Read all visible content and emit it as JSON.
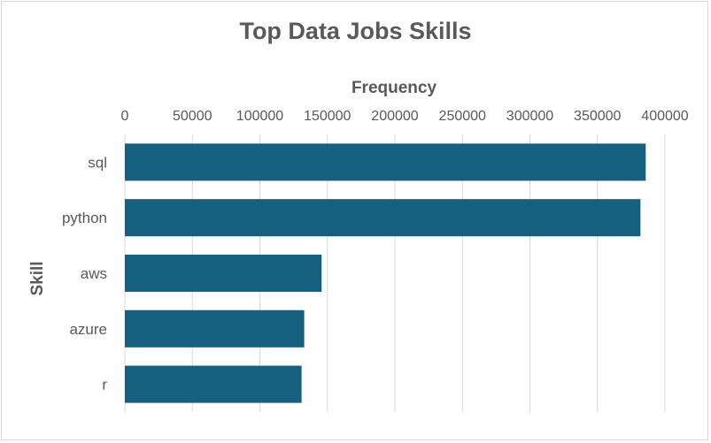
{
  "chart_data": {
    "type": "bar",
    "orientation": "horizontal",
    "title": "Top Data Jobs Skills",
    "xlabel": "Frequency",
    "ylabel": "Skill",
    "categories": [
      "sql",
      "python",
      "aws",
      "azure",
      "r"
    ],
    "values": [
      385750,
      381863,
      145718,
      132851,
      130892
    ],
    "xlim": [
      0,
      400000
    ],
    "xticks": [
      "0",
      "50000",
      "100000",
      "150000",
      "200000",
      "250000",
      "300000",
      "350000",
      "400000"
    ],
    "x_axis_position": "top",
    "grid": true,
    "legend": "none",
    "bar_color": "#16607f",
    "grid_color": "#d9d9d9",
    "text_color": "#595959"
  }
}
